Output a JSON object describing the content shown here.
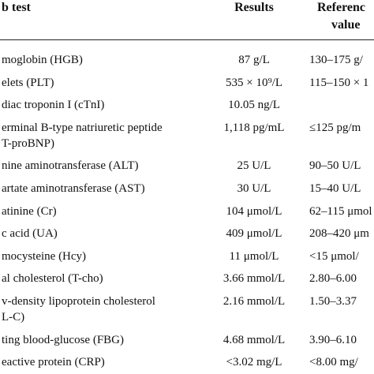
{
  "table": {
    "header": {
      "test": "b test",
      "results": "Results",
      "reference": [
        "Referenc",
        "value"
      ]
    },
    "rows": [
      {
        "test": [
          "moglobin (HGB)"
        ],
        "result": "87 g/L",
        "reference": "130–175 g/"
      },
      {
        "test": [
          "elets (PLT)"
        ],
        "result": "535 × 10⁹/L",
        "reference": "115–150 × 1"
      },
      {
        "test": [
          "diac troponin I (cTnI)"
        ],
        "result": "10.05 ng/L"
      },
      {
        "test": [
          "erminal B-type natriuretic peptide",
          "T-proBNP)"
        ],
        "result": "1,118 pg/mL",
        "reference": "≤125 pg/m"
      },
      {
        "test": [
          "nine aminotransferase (ALT)"
        ],
        "result": "25 U/L",
        "reference": "90–50 U/L"
      },
      {
        "test": [
          "artate aminotransferase (AST)"
        ],
        "result": "30 U/L",
        "reference": "15–40 U/L"
      },
      {
        "test": [
          "atinine (Cr)"
        ],
        "result": "104 μmol/L",
        "reference": "62–115 μmol"
      },
      {
        "test": [
          "c acid (UA)"
        ],
        "result": "409 μmol/L",
        "reference": "208–420 μm"
      },
      {
        "test": [
          "mocysteine (Hcy)"
        ],
        "result": "11 μmol/L",
        "reference": "<15 μmol/"
      },
      {
        "test": [
          "al cholesterol (T-cho)"
        ],
        "result": "3.66 mmol/L",
        "reference": "2.80–6.00"
      },
      {
        "test": [
          "v-density lipoprotein cholesterol",
          "L-C)"
        ],
        "result": "2.16 mmol/L",
        "reference": "1.50–3.37"
      },
      {
        "test": [
          "ting blood-glucose (FBG)"
        ],
        "result": "4.68 mmol/L",
        "reference": "3.90–6.10"
      },
      {
        "test": [
          "eactive protein (CRP)"
        ],
        "result": "<3.02 mg/L",
        "reference": "<8.00 mg/"
      }
    ]
  }
}
